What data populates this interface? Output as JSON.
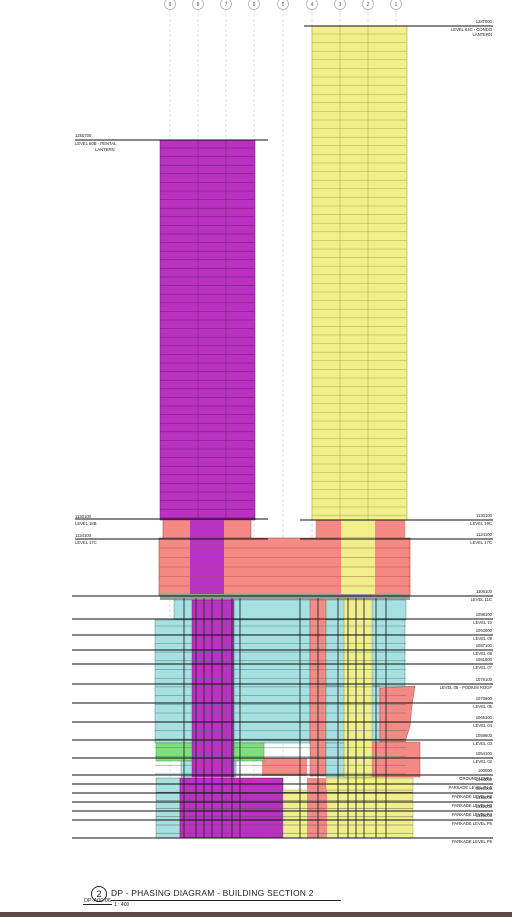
{
  "diagram": {
    "title": "DP - PHASING DIAGRAM -  BUILDING SECTION 2",
    "number": "2",
    "sheet_ref": "DP-A00.06",
    "scale": "1 : 400",
    "grid_lines": [
      "9",
      "8",
      "7",
      "6",
      "5",
      "4",
      "3",
      "2",
      "1"
    ],
    "levels_left": [
      {
        "elev": "1250700",
        "name": "LEVEL 50B - RENTAL",
        "sub": "LANTERN"
      },
      {
        "elev": "1130100",
        "name": "LEVEL 18B"
      },
      {
        "elev": "1124100",
        "name": "LEVEL 17C"
      }
    ],
    "levels_right": [
      {
        "elev": "1287000",
        "name": "LEVEL 64C - CONDO",
        "sub": "LANTERN"
      },
      {
        "elev": "1130100",
        "name": "LEVEL 19C"
      },
      {
        "elev": "1124100",
        "name": "LEVEL 17C"
      },
      {
        "elev": "1106100",
        "name": "LEVEL 11C"
      },
      {
        "elev": "1098100",
        "name": "LEVEL 10"
      },
      {
        "elev": "1093000",
        "name": "LEVEL 09"
      },
      {
        "elev": "1087100",
        "name": "LEVEL 08"
      },
      {
        "elev": "1081600",
        "name": "LEVEL 07"
      },
      {
        "elev": "1076100",
        "name": "LEVEL 06 - PODIUM ROOF"
      },
      {
        "elev": "1070600",
        "name": "LEVEL 05"
      },
      {
        "elev": "1065100",
        "name": "LEVEL 04"
      },
      {
        "elev": "1059600",
        "name": "LEVEL 03"
      },
      {
        "elev": "1054100",
        "name": "LEVEL 02"
      },
      {
        "elev": "100000",
        "name": "GROUND LEVEL"
      },
      {
        "elev": "1044000",
        "name": "PARKADE LEVEL P1.5"
      },
      {
        "elev": "1040000",
        "name": "PARKADE LEVEL P2"
      },
      {
        "elev": "1036000",
        "name": "PARKADE LEVEL P3"
      },
      {
        "elev": "1032000",
        "name": "PARKADE LEVEL P4"
      },
      {
        "elev": "1029000",
        "name": "PARKADE LEVEL P5"
      },
      {
        "elev": "",
        "name": "PARKADE LEVEL P6"
      }
    ],
    "colors": {
      "rental_tower": "#b932c0",
      "condo_tower": "#f0ef8c",
      "podium_salmon": "#f58a85",
      "residential_cyan": "#a7e0e0",
      "green": "#7fe07a",
      "parkade_yellow": "#f0ef8c",
      "grey": "#8a8a8a"
    }
  }
}
